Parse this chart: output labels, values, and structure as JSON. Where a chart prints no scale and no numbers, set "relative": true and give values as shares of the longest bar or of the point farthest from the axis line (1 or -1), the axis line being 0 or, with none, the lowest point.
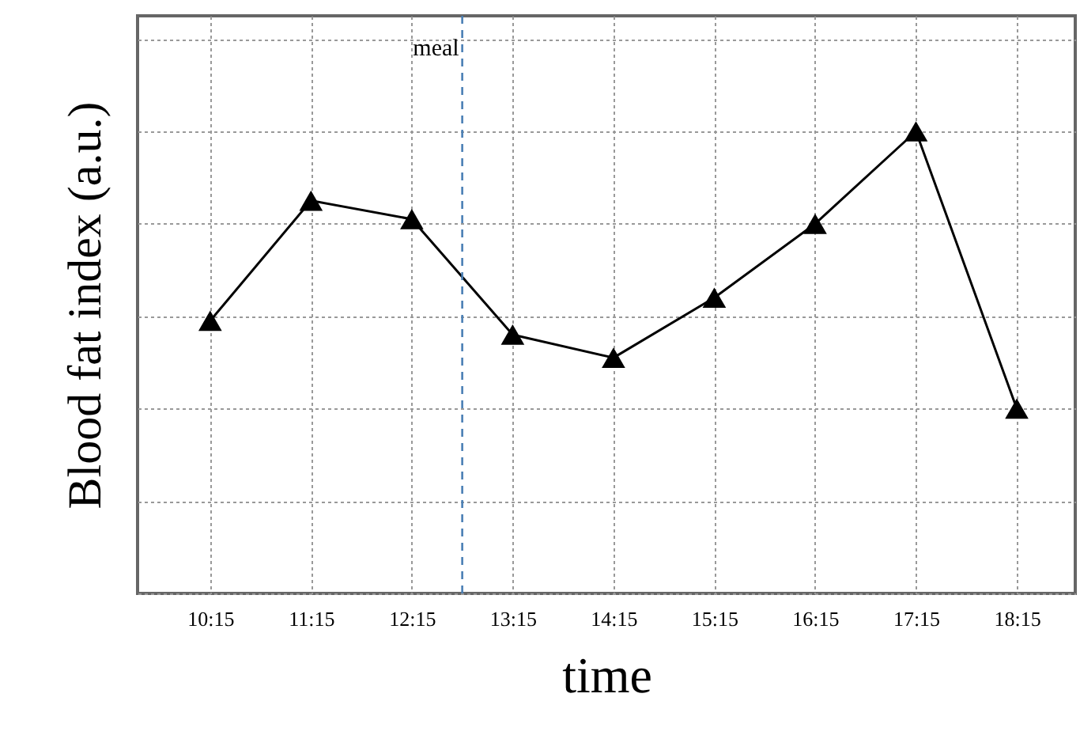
{
  "chart_data": {
    "type": "line",
    "xlabel": "time",
    "ylabel": "Blood fat index (a.u.)",
    "relative": true,
    "x": [
      10.25,
      11.25,
      12.25,
      13.25,
      14.25,
      15.25,
      16.25,
      17.25,
      18.25
    ],
    "series": [
      {
        "color": "#000000",
        "values": [
          0.59,
          0.85,
          0.81,
          0.56,
          0.51,
          0.64,
          0.8,
          1,
          0.4
        ]
      }
    ],
    "xlim": [
      9.53,
      18.83
    ],
    "xticks": [
      {
        "value": 10.25,
        "label": "10:15"
      },
      {
        "value": 11.25,
        "label": "11:15"
      },
      {
        "value": 12.25,
        "label": "12:15"
      },
      {
        "value": 13.25,
        "label": "13:15"
      },
      {
        "value": 14.25,
        "label": "14:15"
      },
      {
        "value": 15.25,
        "label": "15:15"
      },
      {
        "value": 16.25,
        "label": "16:15"
      },
      {
        "value": 17.25,
        "label": "17:15"
      },
      {
        "value": 18.25,
        "label": "18:15"
      }
    ],
    "ref_lines": [
      {
        "axis": "x",
        "value": 12.75,
        "label": "meal",
        "color": "#4a7fb5",
        "line_style": "dashed"
      }
    ],
    "grid": true,
    "marker": "triangle",
    "line_style": "solid"
  }
}
